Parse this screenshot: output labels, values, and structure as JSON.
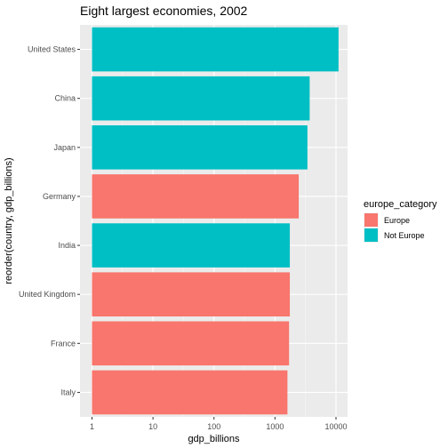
{
  "chart_data": {
    "type": "bar",
    "orientation": "horizontal",
    "title": "Eight largest economies, 2002",
    "xlabel": "gdp_billions",
    "ylabel": "reorder(country, gdp_billions)",
    "x_scale": "log10",
    "xlim": [
      1,
      10000
    ],
    "x_ticks": [
      "1",
      "10",
      "100",
      "1000",
      "10000"
    ],
    "grid": true,
    "legend_position": "right",
    "legend_title": "europe_category",
    "legend": [
      {
        "label": "Europe",
        "color": "#F8766D"
      },
      {
        "label": "Not Europe",
        "color": "#00BFC4"
      }
    ],
    "categories": [
      "United States",
      "China",
      "Japan",
      "Germany",
      "India",
      "United Kingdom",
      "France",
      "Italy"
    ],
    "values": [
      11000,
      3700,
      3400,
      2450,
      1750,
      1750,
      1700,
      1600
    ],
    "groups": [
      "Not Europe",
      "Not Europe",
      "Not Europe",
      "Europe",
      "Not Europe",
      "Europe",
      "Europe",
      "Europe"
    ]
  }
}
